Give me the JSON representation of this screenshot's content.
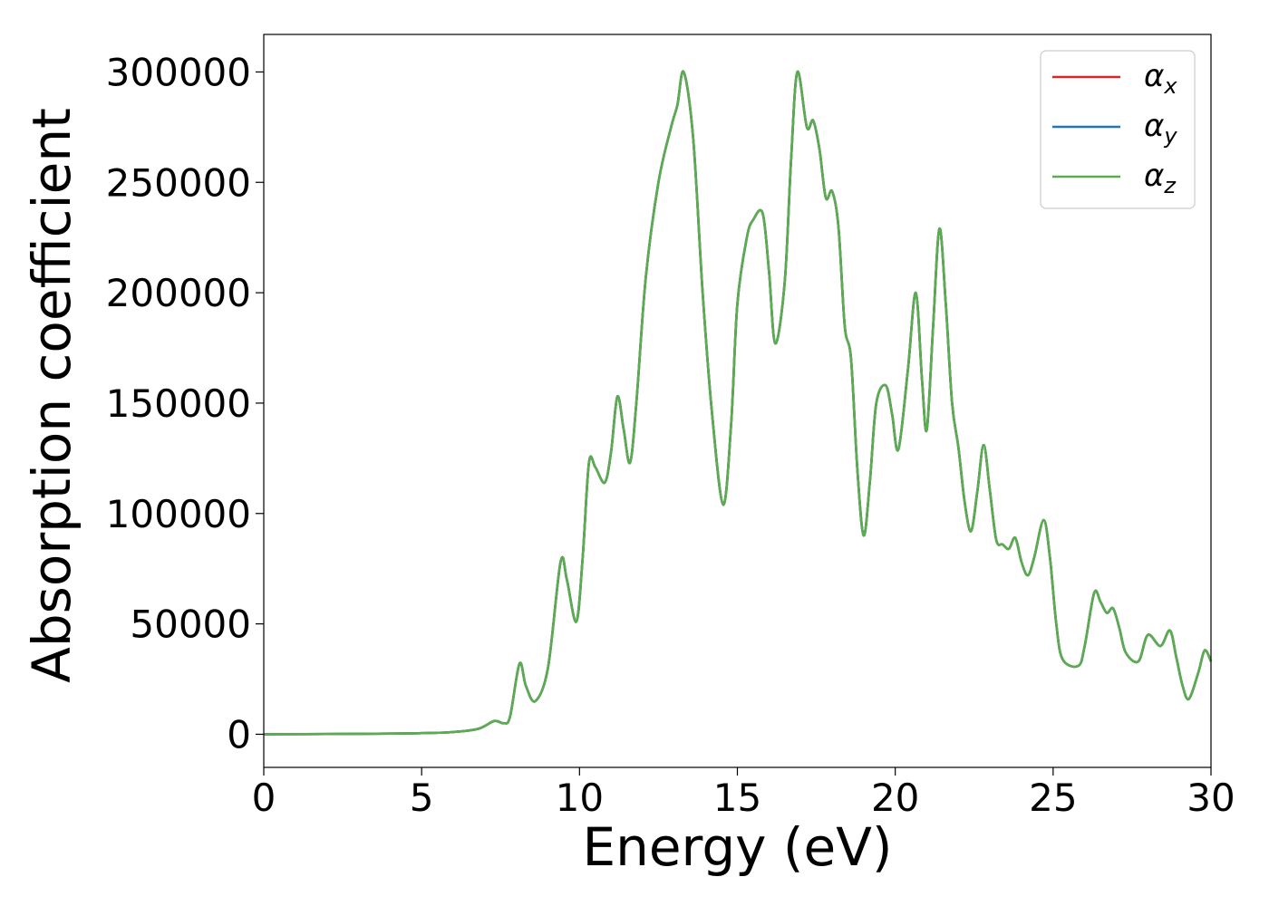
{
  "chart_data": {
    "type": "line",
    "xlabel": "Energy (eV)",
    "ylabel": "Absorption coefficient",
    "xlim": [
      0,
      30
    ],
    "ylim": [
      -15000,
      317000
    ],
    "xticks": [
      0,
      5,
      10,
      15,
      20,
      25,
      30
    ],
    "yticks": [
      0,
      50000,
      100000,
      150000,
      200000,
      250000,
      300000
    ],
    "xtick_labels": [
      "0",
      "5",
      "10",
      "15",
      "20",
      "25",
      "30"
    ],
    "ytick_labels": [
      "0",
      "50000",
      "100000",
      "150000",
      "200000",
      "250000",
      "300000"
    ],
    "grid": false,
    "legend_position": "top-right",
    "series": [
      {
        "name": "αx",
        "legend_base": "α",
        "legend_sub": "x",
        "color": "#d62728",
        "points": [
          [
            0,
            0
          ],
          [
            2,
            100
          ],
          [
            4,
            300
          ],
          [
            5,
            500
          ],
          [
            6,
            1000
          ],
          [
            6.8,
            2500
          ],
          [
            7.3,
            6000
          ],
          [
            7.6,
            5000
          ],
          [
            7.8,
            8000
          ],
          [
            8.1,
            32000
          ],
          [
            8.3,
            22000
          ],
          [
            8.6,
            15000
          ],
          [
            9.0,
            30000
          ],
          [
            9.4,
            78000
          ],
          [
            9.6,
            70000
          ],
          [
            9.9,
            51000
          ],
          [
            10.1,
            80000
          ],
          [
            10.3,
            123000
          ],
          [
            10.5,
            121000
          ],
          [
            10.8,
            114000
          ],
          [
            11.0,
            128000
          ],
          [
            11.2,
            153000
          ],
          [
            11.4,
            138000
          ],
          [
            11.6,
            123000
          ],
          [
            11.8,
            150000
          ],
          [
            12.1,
            207000
          ],
          [
            12.5,
            250000
          ],
          [
            12.9,
            275000
          ],
          [
            13.1,
            285000
          ],
          [
            13.3,
            300000
          ],
          [
            13.6,
            270000
          ],
          [
            13.9,
            200000
          ],
          [
            14.2,
            145000
          ],
          [
            14.55,
            104000
          ],
          [
            14.8,
            140000
          ],
          [
            15.0,
            195000
          ],
          [
            15.3,
            225000
          ],
          [
            15.5,
            233000
          ],
          [
            15.8,
            236000
          ],
          [
            16.0,
            210000
          ],
          [
            16.2,
            177000
          ],
          [
            16.5,
            205000
          ],
          [
            16.7,
            260000
          ],
          [
            16.9,
            300000
          ],
          [
            17.2,
            275000
          ],
          [
            17.4,
            278000
          ],
          [
            17.6,
            265000
          ],
          [
            17.8,
            243000
          ],
          [
            18.0,
            246000
          ],
          [
            18.2,
            230000
          ],
          [
            18.4,
            185000
          ],
          [
            18.6,
            170000
          ],
          [
            18.8,
            120000
          ],
          [
            19.0,
            90000
          ],
          [
            19.2,
            115000
          ],
          [
            19.4,
            150000
          ],
          [
            19.7,
            158000
          ],
          [
            19.9,
            145000
          ],
          [
            20.1,
            129000
          ],
          [
            20.4,
            165000
          ],
          [
            20.65,
            200000
          ],
          [
            20.85,
            160000
          ],
          [
            21.0,
            138000
          ],
          [
            21.2,
            185000
          ],
          [
            21.4,
            229000
          ],
          [
            21.6,
            195000
          ],
          [
            21.8,
            150000
          ],
          [
            22.0,
            130000
          ],
          [
            22.2,
            105000
          ],
          [
            22.4,
            92000
          ],
          [
            22.6,
            110000
          ],
          [
            22.8,
            131000
          ],
          [
            23.0,
            110000
          ],
          [
            23.2,
            88000
          ],
          [
            23.4,
            86000
          ],
          [
            23.6,
            84000
          ],
          [
            23.8,
            89000
          ],
          [
            24.0,
            78000
          ],
          [
            24.2,
            72000
          ],
          [
            24.4,
            80000
          ],
          [
            24.7,
            97000
          ],
          [
            24.9,
            80000
          ],
          [
            25.1,
            50000
          ],
          [
            25.3,
            34000
          ],
          [
            25.8,
            31000
          ],
          [
            26.0,
            40000
          ],
          [
            26.3,
            64000
          ],
          [
            26.5,
            60000
          ],
          [
            26.7,
            55000
          ],
          [
            26.9,
            57000
          ],
          [
            27.1,
            48000
          ],
          [
            27.3,
            37000
          ],
          [
            27.7,
            33000
          ],
          [
            28.0,
            45000
          ],
          [
            28.4,
            40000
          ],
          [
            28.7,
            47000
          ],
          [
            28.9,
            35000
          ],
          [
            29.1,
            22000
          ],
          [
            29.3,
            16000
          ],
          [
            29.6,
            28000
          ],
          [
            29.8,
            38000
          ],
          [
            30.0,
            33000
          ]
        ]
      },
      {
        "name": "αy",
        "legend_base": "α",
        "legend_sub": "y",
        "color": "#1f77b4",
        "points": [
          [
            0,
            0
          ],
          [
            2,
            100
          ],
          [
            4,
            300
          ],
          [
            5,
            500
          ],
          [
            6,
            1000
          ],
          [
            6.8,
            2500
          ],
          [
            7.3,
            6000
          ],
          [
            7.6,
            5000
          ],
          [
            7.8,
            8000
          ],
          [
            8.1,
            32000
          ],
          [
            8.3,
            22000
          ],
          [
            8.6,
            15000
          ],
          [
            9.0,
            30000
          ],
          [
            9.4,
            78000
          ],
          [
            9.6,
            70000
          ],
          [
            9.9,
            51000
          ],
          [
            10.1,
            80000
          ],
          [
            10.3,
            123000
          ],
          [
            10.5,
            121000
          ],
          [
            10.8,
            114000
          ],
          [
            11.0,
            128000
          ],
          [
            11.2,
            153000
          ],
          [
            11.4,
            138000
          ],
          [
            11.6,
            123000
          ],
          [
            11.8,
            150000
          ],
          [
            12.1,
            207000
          ],
          [
            12.5,
            250000
          ],
          [
            12.9,
            275000
          ],
          [
            13.1,
            285000
          ],
          [
            13.3,
            300000
          ],
          [
            13.6,
            270000
          ],
          [
            13.9,
            200000
          ],
          [
            14.2,
            145000
          ],
          [
            14.55,
            104000
          ],
          [
            14.8,
            140000
          ],
          [
            15.0,
            195000
          ],
          [
            15.3,
            225000
          ],
          [
            15.5,
            233000
          ],
          [
            15.8,
            236000
          ],
          [
            16.0,
            210000
          ],
          [
            16.2,
            177000
          ],
          [
            16.5,
            205000
          ],
          [
            16.7,
            260000
          ],
          [
            16.9,
            300000
          ],
          [
            17.2,
            275000
          ],
          [
            17.4,
            278000
          ],
          [
            17.6,
            265000
          ],
          [
            17.8,
            243000
          ],
          [
            18.0,
            246000
          ],
          [
            18.2,
            230000
          ],
          [
            18.4,
            185000
          ],
          [
            18.6,
            170000
          ],
          [
            18.8,
            120000
          ],
          [
            19.0,
            90000
          ],
          [
            19.2,
            115000
          ],
          [
            19.4,
            150000
          ],
          [
            19.7,
            158000
          ],
          [
            19.9,
            145000
          ],
          [
            20.1,
            129000
          ],
          [
            20.4,
            165000
          ],
          [
            20.65,
            200000
          ],
          [
            20.85,
            160000
          ],
          [
            21.0,
            138000
          ],
          [
            21.2,
            185000
          ],
          [
            21.4,
            229000
          ],
          [
            21.6,
            195000
          ],
          [
            21.8,
            150000
          ],
          [
            22.0,
            130000
          ],
          [
            22.2,
            105000
          ],
          [
            22.4,
            92000
          ],
          [
            22.6,
            110000
          ],
          [
            22.8,
            131000
          ],
          [
            23.0,
            110000
          ],
          [
            23.2,
            88000
          ],
          [
            23.4,
            86000
          ],
          [
            23.6,
            84000
          ],
          [
            23.8,
            89000
          ],
          [
            24.0,
            78000
          ],
          [
            24.2,
            72000
          ],
          [
            24.4,
            80000
          ],
          [
            24.7,
            97000
          ],
          [
            24.9,
            80000
          ],
          [
            25.1,
            50000
          ],
          [
            25.3,
            34000
          ],
          [
            25.8,
            31000
          ],
          [
            26.0,
            40000
          ],
          [
            26.3,
            64000
          ],
          [
            26.5,
            60000
          ],
          [
            26.7,
            55000
          ],
          [
            26.9,
            57000
          ],
          [
            27.1,
            48000
          ],
          [
            27.3,
            37000
          ],
          [
            27.7,
            33000
          ],
          [
            28.0,
            45000
          ],
          [
            28.4,
            40000
          ],
          [
            28.7,
            47000
          ],
          [
            28.9,
            35000
          ],
          [
            29.1,
            22000
          ],
          [
            29.3,
            16000
          ],
          [
            29.6,
            28000
          ],
          [
            29.8,
            38000
          ],
          [
            30.0,
            33000
          ]
        ]
      },
      {
        "name": "αz",
        "legend_base": "α",
        "legend_sub": "z",
        "color": "#5aad4e",
        "points": [
          [
            0,
            0
          ],
          [
            2,
            100
          ],
          [
            4,
            300
          ],
          [
            5,
            500
          ],
          [
            6,
            1000
          ],
          [
            6.8,
            2500
          ],
          [
            7.3,
            6000
          ],
          [
            7.6,
            5000
          ],
          [
            7.8,
            8000
          ],
          [
            8.1,
            32000
          ],
          [
            8.3,
            22000
          ],
          [
            8.6,
            15000
          ],
          [
            9.0,
            30000
          ],
          [
            9.4,
            78000
          ],
          [
            9.6,
            70000
          ],
          [
            9.9,
            51000
          ],
          [
            10.1,
            80000
          ],
          [
            10.3,
            123000
          ],
          [
            10.5,
            121000
          ],
          [
            10.8,
            114000
          ],
          [
            11.0,
            128000
          ],
          [
            11.2,
            153000
          ],
          [
            11.4,
            138000
          ],
          [
            11.6,
            123000
          ],
          [
            11.8,
            150000
          ],
          [
            12.1,
            207000
          ],
          [
            12.5,
            250000
          ],
          [
            12.9,
            275000
          ],
          [
            13.1,
            285000
          ],
          [
            13.3,
            300000
          ],
          [
            13.6,
            270000
          ],
          [
            13.9,
            200000
          ],
          [
            14.2,
            145000
          ],
          [
            14.55,
            104000
          ],
          [
            14.8,
            140000
          ],
          [
            15.0,
            195000
          ],
          [
            15.3,
            225000
          ],
          [
            15.5,
            233000
          ],
          [
            15.8,
            236000
          ],
          [
            16.0,
            210000
          ],
          [
            16.2,
            177000
          ],
          [
            16.5,
            205000
          ],
          [
            16.7,
            260000
          ],
          [
            16.9,
            300000
          ],
          [
            17.2,
            275000
          ],
          [
            17.4,
            278000
          ],
          [
            17.6,
            265000
          ],
          [
            17.8,
            243000
          ],
          [
            18.0,
            246000
          ],
          [
            18.2,
            230000
          ],
          [
            18.4,
            185000
          ],
          [
            18.6,
            170000
          ],
          [
            18.8,
            120000
          ],
          [
            19.0,
            90000
          ],
          [
            19.2,
            115000
          ],
          [
            19.4,
            150000
          ],
          [
            19.7,
            158000
          ],
          [
            19.9,
            145000
          ],
          [
            20.1,
            129000
          ],
          [
            20.4,
            165000
          ],
          [
            20.65,
            200000
          ],
          [
            20.85,
            160000
          ],
          [
            21.0,
            138000
          ],
          [
            21.2,
            185000
          ],
          [
            21.4,
            229000
          ],
          [
            21.6,
            195000
          ],
          [
            21.8,
            150000
          ],
          [
            22.0,
            130000
          ],
          [
            22.2,
            105000
          ],
          [
            22.4,
            92000
          ],
          [
            22.6,
            110000
          ],
          [
            22.8,
            131000
          ],
          [
            23.0,
            110000
          ],
          [
            23.2,
            88000
          ],
          [
            23.4,
            86000
          ],
          [
            23.6,
            84000
          ],
          [
            23.8,
            89000
          ],
          [
            24.0,
            78000
          ],
          [
            24.2,
            72000
          ],
          [
            24.4,
            80000
          ],
          [
            24.7,
            97000
          ],
          [
            24.9,
            80000
          ],
          [
            25.1,
            50000
          ],
          [
            25.3,
            34000
          ],
          [
            25.8,
            31000
          ],
          [
            26.0,
            40000
          ],
          [
            26.3,
            64000
          ],
          [
            26.5,
            60000
          ],
          [
            26.7,
            55000
          ],
          [
            26.9,
            57000
          ],
          [
            27.1,
            48000
          ],
          [
            27.3,
            37000
          ],
          [
            27.7,
            33000
          ],
          [
            28.0,
            45000
          ],
          [
            28.4,
            40000
          ],
          [
            28.7,
            47000
          ],
          [
            28.9,
            35000
          ],
          [
            29.1,
            22000
          ],
          [
            29.3,
            16000
          ],
          [
            29.6,
            28000
          ],
          [
            29.8,
            38000
          ],
          [
            30.0,
            33000
          ]
        ]
      }
    ]
  }
}
